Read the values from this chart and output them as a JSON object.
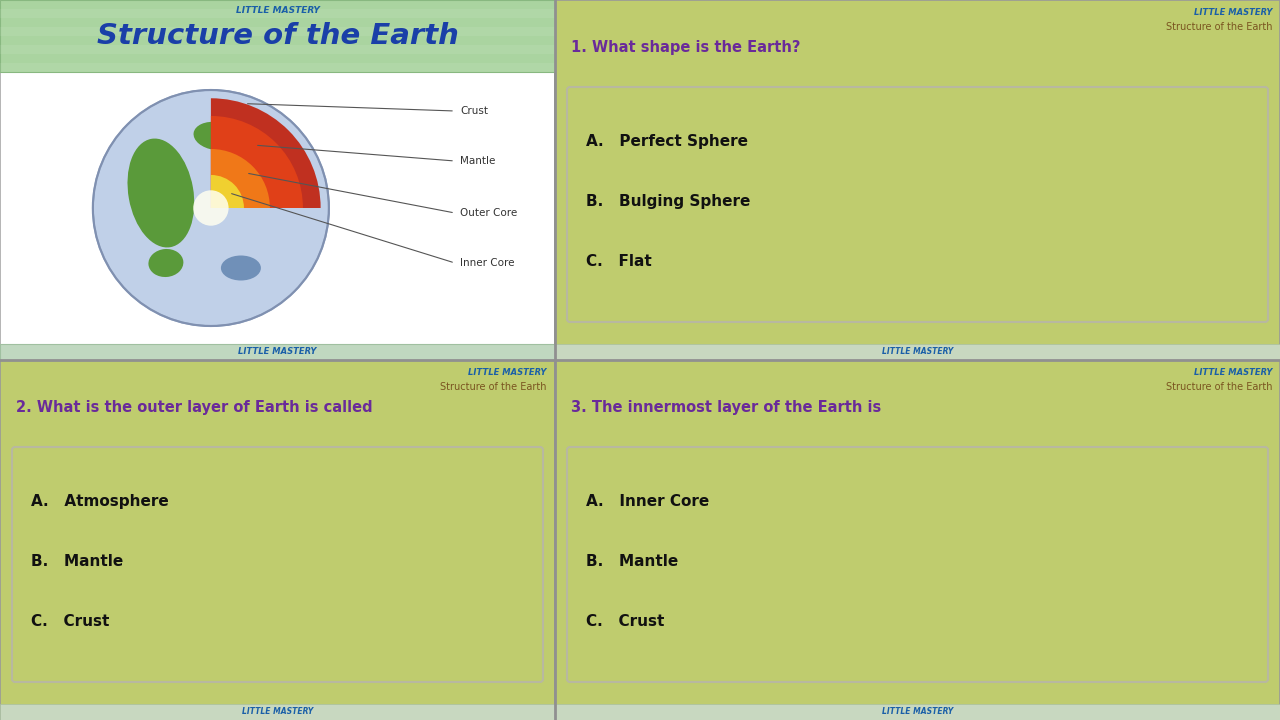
{
  "bg_color": "#b8b8b8",
  "panel_bg_green": "#bfcc6e",
  "panel_bg_white": "#ffffff",
  "little_mastery_color": "#1a5fa8",
  "structure_subtitle_color": "#7a5520",
  "question_color": "#6a2a9a",
  "answer_color": "#111111",
  "slide1_title": "Structure of the Earth",
  "slide1_title_color": "#1a3fa8",
  "header_text": "Little Mastery",
  "subtitle_text": "Structure of the Earth",
  "strip_color": "#c8dfc8",
  "strip_border": "#a0c0a0",
  "ans_box_border": "#c0c0a8",
  "panels": [
    {
      "id": 1,
      "question": "1. What shape is the Earth?",
      "answers": [
        "A.   Perfect Sphere",
        "B.   Bulging Sphere",
        "C.   Flat"
      ]
    },
    {
      "id": 2,
      "question": "2. What is the outer layer of Earth is called",
      "answers": [
        "A.   Atmosphere",
        "B.   Mantle",
        "C.   Crust"
      ]
    },
    {
      "id": 3,
      "question": "3. The innermost layer of the Earth is",
      "answers": [
        "A.   Inner Core",
        "B.   Mantle",
        "C.   Crust"
      ]
    }
  ]
}
